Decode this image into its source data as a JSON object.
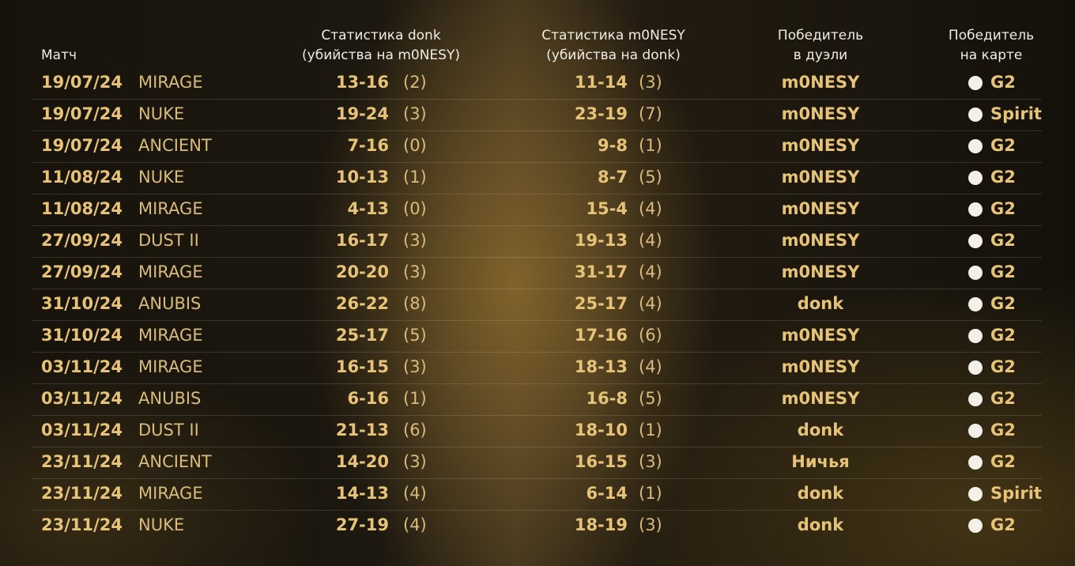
{
  "table": {
    "header": [
      [
        "Матч"
      ],
      [
        "Статистика donk",
        "(убийства на m0NESY)"
      ],
      [
        "Статистика m0NESY",
        "(убийства на donk)"
      ],
      [
        "Победитель",
        "в дуэли"
      ],
      [
        "Победитель",
        "на карте"
      ]
    ],
    "rows": [
      [
        "19/07/24",
        "MIRAGE",
        "13-16",
        "(2)",
        "11-14",
        "(3)",
        "m0NESY",
        "G2"
      ],
      [
        "19/07/24",
        "NUKE",
        "19-24",
        "(3)",
        "23-19",
        "(7)",
        "m0NESY",
        "Spirit"
      ],
      [
        "19/07/24",
        "ANCIENT",
        "7-16",
        "(0)",
        "9-8",
        "(1)",
        "m0NESY",
        "G2"
      ],
      [
        "11/08/24",
        "NUKE",
        "10-13",
        "(1)",
        "8-7",
        "(5)",
        "m0NESY",
        "G2"
      ],
      [
        "11/08/24",
        "MIRAGE",
        "4-13",
        "(0)",
        "15-4",
        "(4)",
        "m0NESY",
        "G2"
      ],
      [
        "27/09/24",
        "DUST II",
        "16-17",
        "(3)",
        "19-13",
        "(4)",
        "m0NESY",
        "G2"
      ],
      [
        "27/09/24",
        "MIRAGE",
        "20-20",
        "(3)",
        "31-17",
        "(4)",
        "m0NESY",
        "G2"
      ],
      [
        "31/10/24",
        "ANUBIS",
        "26-22",
        "(8)",
        "25-17",
        "(4)",
        "donk",
        "G2"
      ],
      [
        "31/10/24",
        "MIRAGE",
        "25-17",
        "(5)",
        "17-16",
        "(6)",
        "m0NESY",
        "G2"
      ],
      [
        "03/11/24",
        "MIRAGE",
        "16-15",
        "(3)",
        "18-13",
        "(4)",
        "m0NESY",
        "G2"
      ],
      [
        "03/11/24",
        "ANUBIS",
        "6-16",
        "(1)",
        "16-8",
        "(5)",
        "m0NESY",
        "G2"
      ],
      [
        "03/11/24",
        "DUST II",
        "21-13",
        "(6)",
        "18-10",
        "(1)",
        "donk",
        "G2"
      ],
      [
        "23/11/24",
        "ANCIENT",
        "14-20",
        "(3)",
        "16-15",
        "(3)",
        "Ничья",
        "G2"
      ],
      [
        "23/11/24",
        "MIRAGE",
        "14-13",
        "(4)",
        "6-14",
        "(1)",
        "donk",
        "Spirit"
      ],
      [
        "23/11/24",
        "NUKE",
        "27-19",
        "(4)",
        "18-19",
        "(3)",
        "donk",
        "G2"
      ]
    ]
  }
}
